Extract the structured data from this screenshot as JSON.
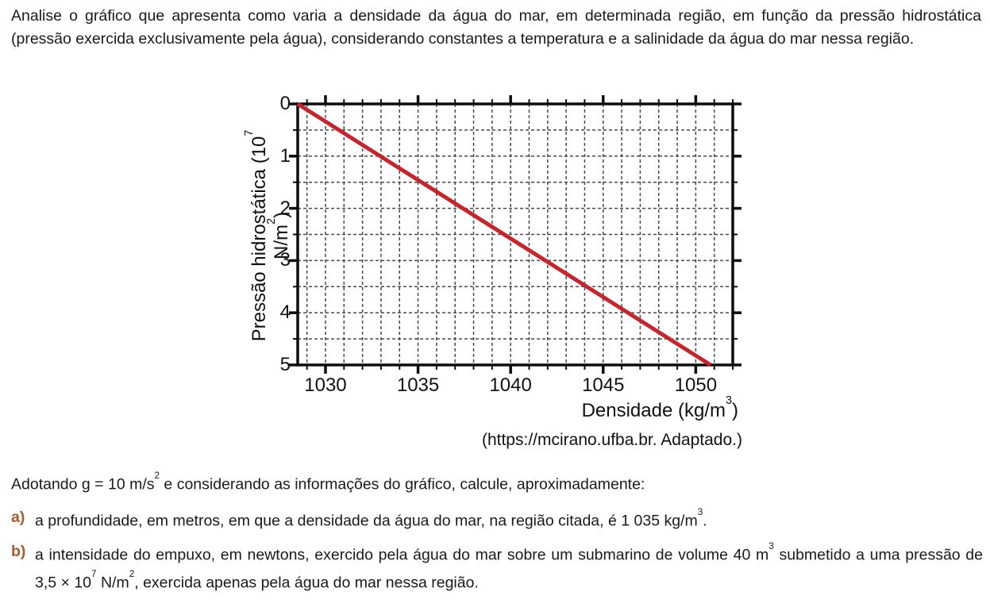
{
  "intro": "Analise o gráfico que apresenta como varia a densidade da água do mar, em determinada região, em função da pressão hidrostática (pressão exercida exclusivamente pela água), considerando constantes a temperatura e a salinidade da água do mar nessa região.",
  "chart_data": {
    "type": "line",
    "xlabel_pre": "Densidade (kg/m",
    "xlabel_sup": "3",
    "xlabel_post": ")",
    "ylabel_pre": "Pressão hidrostática (10",
    "ylabel_sup1": "7",
    "ylabel_mid": " N/m",
    "ylabel_sup2": "2",
    "ylabel_post": ")",
    "x_ticks": [
      "1030",
      "1035",
      "1040",
      "1045",
      "1050"
    ],
    "x_tick_values": [
      1030,
      1035,
      1040,
      1045,
      1050
    ],
    "y_ticks": [
      "0",
      "1",
      "2",
      "3",
      "4",
      "5"
    ],
    "y_tick_values": [
      0,
      1,
      2,
      3,
      4,
      5
    ],
    "xlim": [
      1028.5,
      1052
    ],
    "ylim": [
      0,
      5
    ],
    "y_axis_inverted": true,
    "grid": true,
    "x_minor_step": 1,
    "y_minor_step": 0.5,
    "x_major_step": 5,
    "y_major_step": 1,
    "legend": "none",
    "series": [
      {
        "name": "densidade-vs-pressao",
        "points": [
          [
            1028.5,
            0
          ],
          [
            1050.8,
            5
          ]
        ],
        "color": "#c1272d"
      }
    ],
    "source": "(https://mcirano.ufba.br. Adaptado.)"
  },
  "question": {
    "stem_pre": "Adotando g = 10 m/s",
    "stem_sup": "2",
    "stem_post": " e considerando as informações do gráfico, calcule, aproximadamente:",
    "items": [
      {
        "marker": "a)",
        "pre": "a profundidade, em metros, em que a densidade da água do mar, na região citada, é 1 035 kg/m",
        "sup": "3",
        "post": "."
      },
      {
        "marker": "b)",
        "s1": "a intensidade do empuxo, em newtons, exercido pela água do mar sobre um submarino de volume 40 m",
        "sup1": "3",
        "s2": " submetido a uma pressão de 3,5 × 10",
        "sup2": "7",
        "s3": " N/m",
        "sup3": "2",
        "s4": ", exercida apenas pela água do mar nessa região."
      }
    ]
  },
  "colors": {
    "marker": "#a35b2f",
    "line": "#c1272d",
    "grid": "#4a4a4a",
    "axis": "#0d0d0d",
    "text": "#1a1a1a"
  }
}
